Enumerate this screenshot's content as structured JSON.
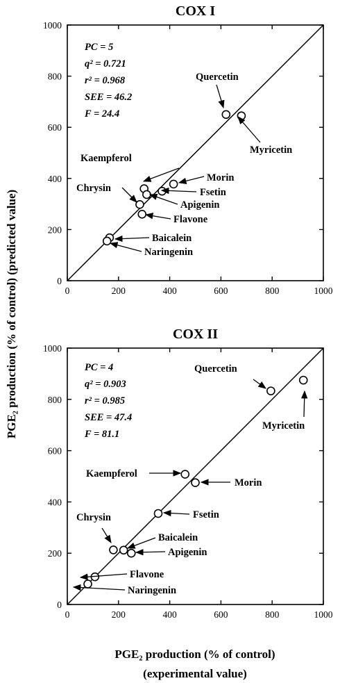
{
  "figure": {
    "ylabel": "PGE₂ production (% of control)  (predicted value)",
    "xlabel_line1": "PGE₂ production (% of control)",
    "xlabel_line2": "(experimental value)"
  },
  "chart_data": [
    {
      "type": "scatter",
      "title": "COX I",
      "xlim": [
        0,
        1000
      ],
      "ylim": [
        0,
        1000
      ],
      "xticks": [
        "0",
        "200",
        "400",
        "600",
        "800",
        "1000"
      ],
      "yticks": [
        "0",
        "200",
        "400",
        "600",
        "800",
        "1000"
      ],
      "identity_line": true,
      "stats": [
        "PC = 5",
        "q² = 0.721",
        "r² = 0.968",
        "SEE = 46.2",
        "F = 24.4"
      ],
      "points": [
        {
          "label": "Quercetin",
          "x": 620,
          "y": 650
        },
        {
          "label": "Myricetin",
          "x": 680,
          "y": 645
        },
        {
          "label": "Kaempferol",
          "x": 300,
          "y": 360
        },
        {
          "label": "Morin",
          "x": 415,
          "y": 378
        },
        {
          "label": "Fsetin",
          "x": 370,
          "y": 350
        },
        {
          "label": "Chrysin",
          "x": 283,
          "y": 298
        },
        {
          "label": "Apigenin",
          "x": 310,
          "y": 337
        },
        {
          "label": "Flavone",
          "x": 292,
          "y": 260
        },
        {
          "label": "Baicalein",
          "x": 165,
          "y": 168
        },
        {
          "label": "Naringenin",
          "x": 155,
          "y": 155
        }
      ]
    },
    {
      "type": "scatter",
      "title": "COX II",
      "xlim": [
        0,
        1000
      ],
      "ylim": [
        0,
        1000
      ],
      "xticks": [
        "0",
        "200",
        "400",
        "600",
        "800",
        "1000"
      ],
      "yticks": [
        "0",
        "200",
        "400",
        "600",
        "800",
        "1000"
      ],
      "identity_line": true,
      "stats": [
        "PC = 4",
        "q² = 0.903",
        "r² = 0.985",
        "SEE = 47.4",
        "F = 81.1"
      ],
      "points": [
        {
          "label": "Quercetin",
          "x": 795,
          "y": 833
        },
        {
          "label": "Myricetin",
          "x": 922,
          "y": 875
        },
        {
          "label": "Kaempferol",
          "x": 460,
          "y": 508
        },
        {
          "label": "Morin",
          "x": 500,
          "y": 475
        },
        {
          "label": "Fsetin",
          "x": 355,
          "y": 355
        },
        {
          "label": "Chrysin",
          "x": 180,
          "y": 213
        },
        {
          "label": "Baicalein",
          "x": 220,
          "y": 212
        },
        {
          "label": "Apigenin",
          "x": 250,
          "y": 200
        },
        {
          "label": "Flavone",
          "x": 108,
          "y": 108
        },
        {
          "label": "Naringenin",
          "x": 80,
          "y": 80
        }
      ]
    }
  ]
}
